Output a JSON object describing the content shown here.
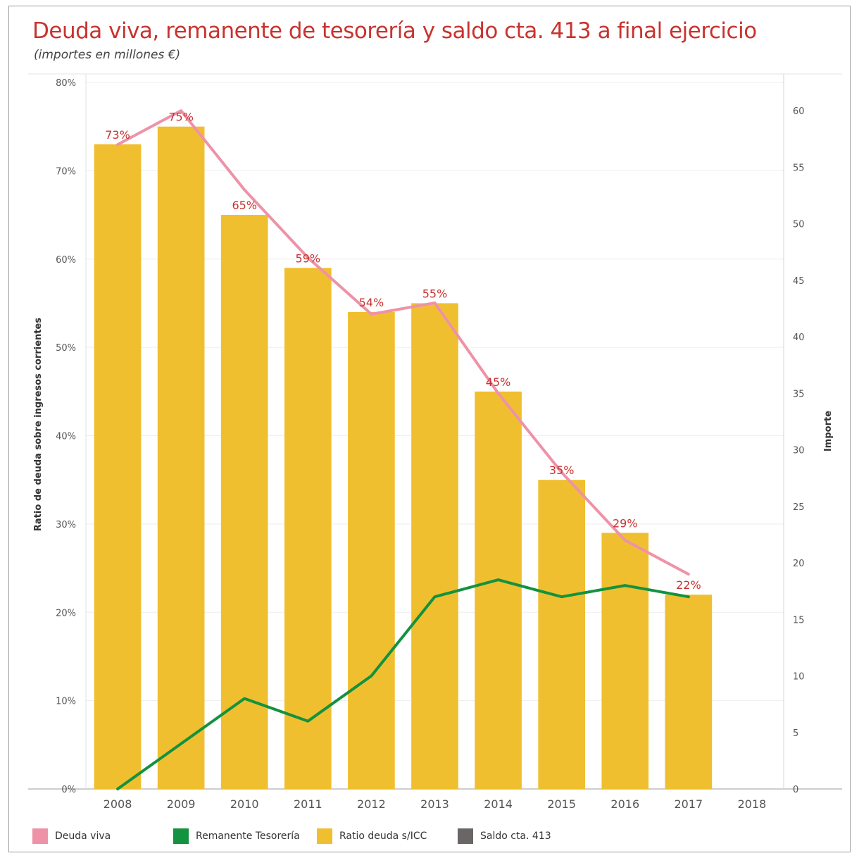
{
  "title": "Deuda viva, remanente de tesorería y saldo cta. 413  a final ejercicio",
  "subtitle": "(importes en millones €)",
  "chart_data": {
    "type": "bar",
    "categories": [
      "2008",
      "2009",
      "2010",
      "2011",
      "2012",
      "2013",
      "2014",
      "2015",
      "2016",
      "2017",
      "2018"
    ],
    "ylabel_left": "Ratio de deuda sobre ingresos corrientes",
    "ylabel_right": "Importe",
    "ylim_left": [
      0,
      80
    ],
    "ylim_right": [
      0,
      62.5
    ],
    "left_ticks": [
      "0%",
      "10%",
      "20%",
      "30%",
      "40%",
      "50%",
      "60%",
      "70%",
      "80%"
    ],
    "right_ticks": [
      "0",
      "5",
      "10",
      "15",
      "20",
      "25",
      "30",
      "35",
      "40",
      "45",
      "50",
      "55",
      "60"
    ],
    "grid": true,
    "legend_position": "bottom",
    "series": [
      {
        "name": "Ratio deuda s/ICC",
        "kind": "bar",
        "axis": "left",
        "color": "#f0bf30",
        "values": [
          73,
          75,
          65,
          59,
          54,
          55,
          45,
          35,
          29,
          22,
          null
        ],
        "labels": [
          "73%",
          "75%",
          "65%",
          "59%",
          "54%",
          "55%",
          "45%",
          "35%",
          "29%",
          "22%",
          ""
        ]
      },
      {
        "name": "Deuda viva",
        "kind": "line",
        "axis": "right",
        "color": "#ee92a8",
        "values": [
          57,
          60,
          53,
          47,
          42,
          43,
          35,
          28,
          22,
          19,
          null
        ]
      },
      {
        "name": "Remanente Tesorería",
        "kind": "line",
        "axis": "right",
        "color": "#13923f",
        "values": [
          0,
          4,
          8,
          6,
          10,
          17,
          18.5,
          17,
          18,
          17,
          null
        ]
      },
      {
        "name": "Saldo cta. 413",
        "kind": "line",
        "axis": "right",
        "color": "#6a6666",
        "values": [
          null,
          null,
          null,
          null,
          null,
          null,
          null,
          null,
          null,
          null,
          null
        ]
      }
    ],
    "label_color": "#c8332f"
  }
}
